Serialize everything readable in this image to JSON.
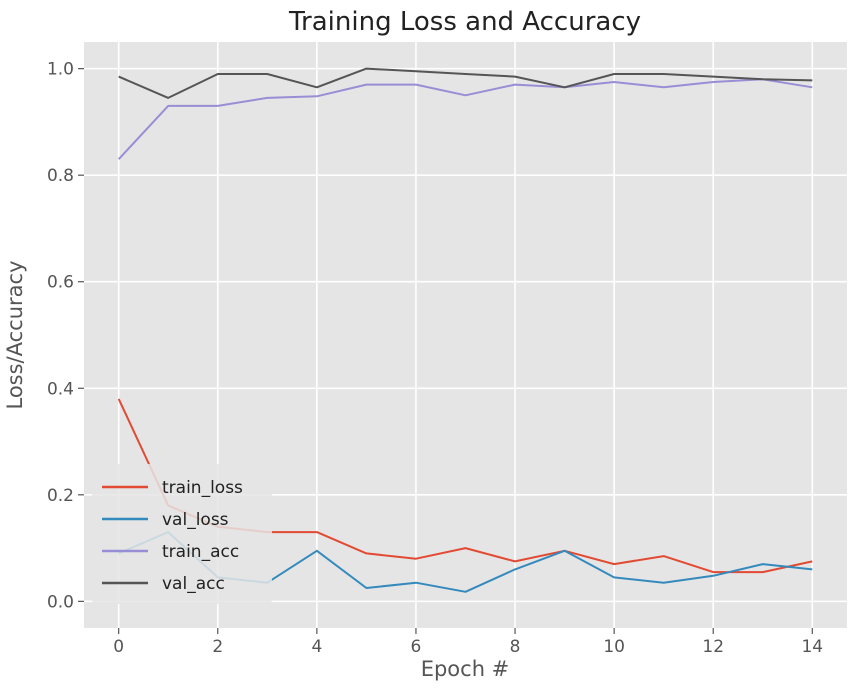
{
  "chart_data": {
    "type": "line",
    "title": "Training Loss and Accuracy",
    "xlabel": "Epoch #",
    "ylabel": "Loss/Accuracy",
    "xlim": [
      -0.7,
      14.7
    ],
    "ylim": [
      -0.05,
      1.05
    ],
    "xticks": [
      "0",
      "2",
      "4",
      "6",
      "8",
      "10",
      "12",
      "14"
    ],
    "yticks": [
      "0.0",
      "0.2",
      "0.4",
      "0.6",
      "0.8",
      "1.0"
    ],
    "grid": true,
    "legend_position": "lower-left",
    "x": [
      0,
      1,
      2,
      3,
      4,
      5,
      6,
      7,
      8,
      9,
      10,
      11,
      12,
      13,
      14
    ],
    "series": [
      {
        "name": "train_loss",
        "color": "#e24a33",
        "values": [
          0.38,
          0.18,
          0.14,
          0.13,
          0.13,
          0.09,
          0.08,
          0.1,
          0.075,
          0.095,
          0.07,
          0.085,
          0.055,
          0.055,
          0.075
        ]
      },
      {
        "name": "val_loss",
        "color": "#348abd",
        "values": [
          0.09,
          0.13,
          0.045,
          0.035,
          0.095,
          0.025,
          0.035,
          0.018,
          0.06,
          0.095,
          0.045,
          0.035,
          0.048,
          0.07,
          0.06
        ]
      },
      {
        "name": "train_acc",
        "color": "#988ed5",
        "values": [
          0.83,
          0.93,
          0.93,
          0.945,
          0.948,
          0.97,
          0.97,
          0.95,
          0.97,
          0.965,
          0.975,
          0.965,
          0.975,
          0.98,
          0.965
        ]
      },
      {
        "name": "val_acc",
        "color": "#555555",
        "values": [
          0.985,
          0.945,
          0.99,
          0.99,
          0.965,
          1.0,
          0.995,
          0.99,
          0.985,
          0.965,
          0.99,
          0.99,
          0.985,
          0.98,
          0.978
        ]
      }
    ]
  }
}
